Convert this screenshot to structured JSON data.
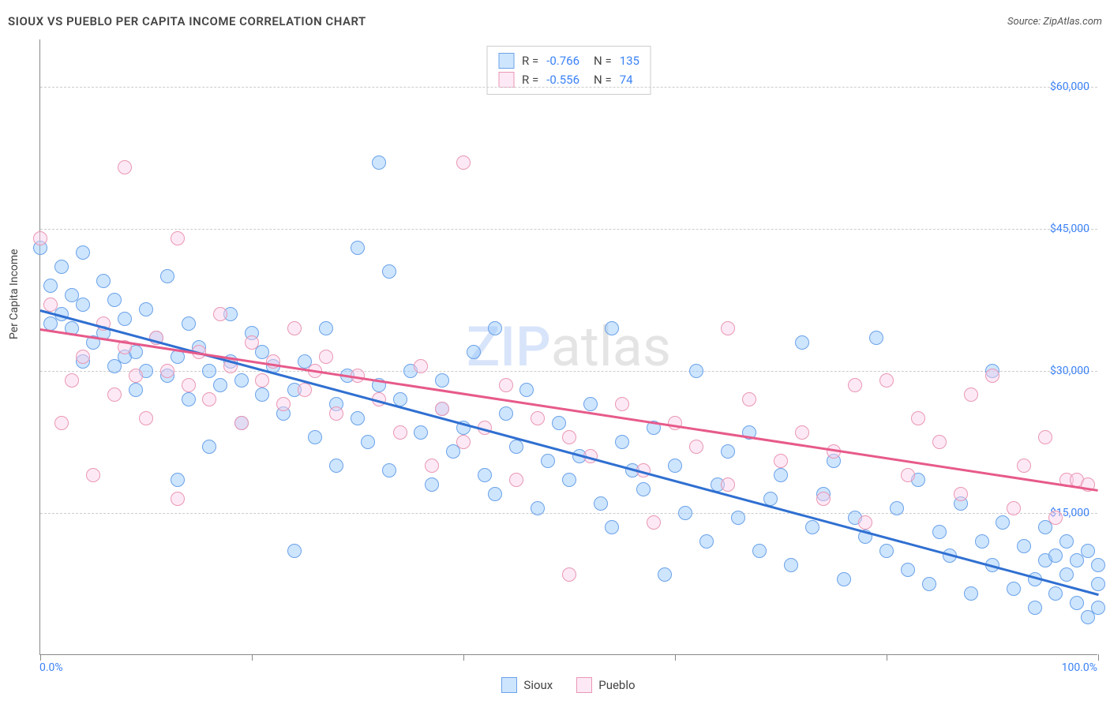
{
  "title": "SIOUX VS PUEBLO PER CAPITA INCOME CORRELATION CHART",
  "source": "Source: ZipAtlas.com",
  "y_axis_title": "Per Capita Income",
  "watermark": {
    "part1": "ZIP",
    "part2": "atlas"
  },
  "chart": {
    "type": "scatter",
    "background_color": "#ffffff",
    "grid_color": "#cccccc",
    "axis_color": "#888888",
    "xlim": [
      0,
      100
    ],
    "ylim": [
      0,
      65000
    ],
    "x_ticks": [
      0,
      20,
      40,
      60,
      80,
      100
    ],
    "x_axis_labels": {
      "left": "0.0%",
      "right": "100.0%"
    },
    "y_grid": [
      {
        "value": 15000,
        "label": "$15,000"
      },
      {
        "value": 30000,
        "label": "$30,000"
      },
      {
        "value": 45000,
        "label": "$45,000"
      },
      {
        "value": 60000,
        "label": "$60,000"
      }
    ],
    "tick_label_color": "#3b82f6",
    "marker_radius": 9,
    "marker_stroke_width": 1.5,
    "series": [
      {
        "name": "Sioux",
        "fill": "rgba(147,197,253,0.45)",
        "stroke": "#6aa2e8",
        "R": "-0.766",
        "N": "135",
        "trend": {
          "y_at_x0": 36500,
          "y_at_x100": 6500,
          "color": "#2f6fd1",
          "width": 3
        },
        "points": [
          [
            0,
            43000
          ],
          [
            1,
            35000
          ],
          [
            1,
            39000
          ],
          [
            2,
            41000
          ],
          [
            2,
            36000
          ],
          [
            3,
            38000
          ],
          [
            3,
            34500
          ],
          [
            4,
            42500
          ],
          [
            4,
            37000
          ],
          [
            4,
            31000
          ],
          [
            5,
            33000
          ],
          [
            6,
            39500
          ],
          [
            6,
            34000
          ],
          [
            7,
            30500
          ],
          [
            7,
            37500
          ],
          [
            8,
            35500
          ],
          [
            8,
            31500
          ],
          [
            9,
            28000
          ],
          [
            9,
            32000
          ],
          [
            10,
            36500
          ],
          [
            10,
            30000
          ],
          [
            11,
            33500
          ],
          [
            12,
            29500
          ],
          [
            12,
            40000
          ],
          [
            13,
            18500
          ],
          [
            13,
            31500
          ],
          [
            14,
            35000
          ],
          [
            14,
            27000
          ],
          [
            15,
            32500
          ],
          [
            16,
            30000
          ],
          [
            16,
            22000
          ],
          [
            17,
            28500
          ],
          [
            18,
            36000
          ],
          [
            18,
            31000
          ],
          [
            19,
            29000
          ],
          [
            19,
            24500
          ],
          [
            20,
            34000
          ],
          [
            21,
            27500
          ],
          [
            21,
            32000
          ],
          [
            22,
            30500
          ],
          [
            23,
            25500
          ],
          [
            24,
            11000
          ],
          [
            24,
            28000
          ],
          [
            25,
            31000
          ],
          [
            26,
            23000
          ],
          [
            27,
            34500
          ],
          [
            28,
            26500
          ],
          [
            28,
            20000
          ],
          [
            29,
            29500
          ],
          [
            30,
            43000
          ],
          [
            30,
            25000
          ],
          [
            31,
            22500
          ],
          [
            32,
            28500
          ],
          [
            32,
            52000
          ],
          [
            33,
            40500
          ],
          [
            33,
            19500
          ],
          [
            34,
            27000
          ],
          [
            35,
            30000
          ],
          [
            36,
            23500
          ],
          [
            37,
            18000
          ],
          [
            38,
            26000
          ],
          [
            38,
            29000
          ],
          [
            39,
            21500
          ],
          [
            40,
            24000
          ],
          [
            41,
            32000
          ],
          [
            42,
            19000
          ],
          [
            43,
            17000
          ],
          [
            43,
            34500
          ],
          [
            44,
            25500
          ],
          [
            45,
            22000
          ],
          [
            46,
            28000
          ],
          [
            47,
            15500
          ],
          [
            48,
            20500
          ],
          [
            49,
            24500
          ],
          [
            50,
            18500
          ],
          [
            51,
            21000
          ],
          [
            52,
            26500
          ],
          [
            53,
            16000
          ],
          [
            54,
            34500
          ],
          [
            54,
            13500
          ],
          [
            55,
            22500
          ],
          [
            56,
            19500
          ],
          [
            57,
            17500
          ],
          [
            58,
            24000
          ],
          [
            59,
            8500
          ],
          [
            60,
            20000
          ],
          [
            61,
            15000
          ],
          [
            62,
            30000
          ],
          [
            63,
            12000
          ],
          [
            64,
            18000
          ],
          [
            65,
            21500
          ],
          [
            66,
            14500
          ],
          [
            67,
            23500
          ],
          [
            68,
            11000
          ],
          [
            69,
            16500
          ],
          [
            70,
            19000
          ],
          [
            71,
            9500
          ],
          [
            72,
            33000
          ],
          [
            73,
            13500
          ],
          [
            74,
            17000
          ],
          [
            75,
            20500
          ],
          [
            76,
            8000
          ],
          [
            77,
            14500
          ],
          [
            78,
            12500
          ],
          [
            79,
            33500
          ],
          [
            80,
            11000
          ],
          [
            81,
            15500
          ],
          [
            82,
            9000
          ],
          [
            83,
            18500
          ],
          [
            84,
            7500
          ],
          [
            85,
            13000
          ],
          [
            86,
            10500
          ],
          [
            87,
            16000
          ],
          [
            88,
            6500
          ],
          [
            89,
            12000
          ],
          [
            90,
            30000
          ],
          [
            90,
            9500
          ],
          [
            91,
            14000
          ],
          [
            92,
            7000
          ],
          [
            93,
            11500
          ],
          [
            94,
            8000
          ],
          [
            94,
            5000
          ],
          [
            95,
            13500
          ],
          [
            95,
            10000
          ],
          [
            96,
            6500
          ],
          [
            96,
            10500
          ],
          [
            97,
            12000
          ],
          [
            97,
            8500
          ],
          [
            98,
            10000
          ],
          [
            98,
            5500
          ],
          [
            99,
            4000
          ],
          [
            99,
            11000
          ],
          [
            100,
            7500
          ],
          [
            100,
            5000
          ],
          [
            100,
            9500
          ]
        ]
      },
      {
        "name": "Pueblo",
        "fill": "rgba(251,207,232,0.45)",
        "stroke": "#e997b3",
        "R": "-0.556",
        "N": "74",
        "trend": {
          "y_at_x0": 34500,
          "y_at_x100": 17500,
          "color": "#e75a8a",
          "width": 3
        },
        "points": [
          [
            0,
            44000
          ],
          [
            1,
            37000
          ],
          [
            2,
            24500
          ],
          [
            3,
            29000
          ],
          [
            4,
            31500
          ],
          [
            5,
            19000
          ],
          [
            6,
            35000
          ],
          [
            7,
            27500
          ],
          [
            8,
            32500
          ],
          [
            8,
            51500
          ],
          [
            9,
            29500
          ],
          [
            10,
            25000
          ],
          [
            11,
            33500
          ],
          [
            12,
            30000
          ],
          [
            13,
            16500
          ],
          [
            13,
            44000
          ],
          [
            14,
            28500
          ],
          [
            15,
            32000
          ],
          [
            16,
            27000
          ],
          [
            17,
            36000
          ],
          [
            18,
            30500
          ],
          [
            19,
            24500
          ],
          [
            20,
            33000
          ],
          [
            21,
            29000
          ],
          [
            22,
            31000
          ],
          [
            23,
            26500
          ],
          [
            24,
            34500
          ],
          [
            25,
            28000
          ],
          [
            26,
            30000
          ],
          [
            27,
            31500
          ],
          [
            28,
            25500
          ],
          [
            30,
            29500
          ],
          [
            32,
            27000
          ],
          [
            34,
            23500
          ],
          [
            36,
            30500
          ],
          [
            37,
            20000
          ],
          [
            38,
            26000
          ],
          [
            40,
            52000
          ],
          [
            40,
            22500
          ],
          [
            42,
            24000
          ],
          [
            44,
            28500
          ],
          [
            45,
            18500
          ],
          [
            47,
            25000
          ],
          [
            50,
            8500
          ],
          [
            50,
            23000
          ],
          [
            52,
            21000
          ],
          [
            55,
            26500
          ],
          [
            57,
            19500
          ],
          [
            58,
            14000
          ],
          [
            60,
            24500
          ],
          [
            62,
            22000
          ],
          [
            65,
            34500
          ],
          [
            65,
            18000
          ],
          [
            67,
            27000
          ],
          [
            70,
            20500
          ],
          [
            72,
            23500
          ],
          [
            74,
            16500
          ],
          [
            75,
            21500
          ],
          [
            77,
            28500
          ],
          [
            78,
            14000
          ],
          [
            80,
            29000
          ],
          [
            82,
            19000
          ],
          [
            83,
            25000
          ],
          [
            85,
            22500
          ],
          [
            87,
            17000
          ],
          [
            88,
            27500
          ],
          [
            90,
            29500
          ],
          [
            92,
            15500
          ],
          [
            93,
            20000
          ],
          [
            95,
            23000
          ],
          [
            96,
            14500
          ],
          [
            97,
            18500
          ],
          [
            98,
            18500
          ],
          [
            99,
            18000
          ]
        ]
      }
    ],
    "legend_top_labels": {
      "R": "R =",
      "N": "N ="
    },
    "legend_bottom": [
      {
        "label": "Sioux",
        "fill": "rgba(147,197,253,0.6)",
        "stroke": "#6aa2e8"
      },
      {
        "label": "Pueblo",
        "fill": "rgba(251,207,232,0.6)",
        "stroke": "#e997b3"
      }
    ]
  }
}
